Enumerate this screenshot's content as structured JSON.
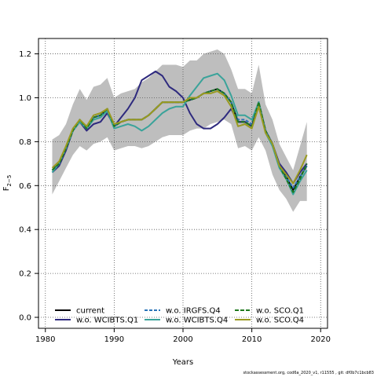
{
  "chart_data": {
    "type": "line",
    "title": "",
    "xlabel": "Years",
    "ylabel": "F",
    "ylabel_subscript": "2−5",
    "xlim": [
      1979,
      2021
    ],
    "ylim": [
      -0.05,
      1.27
    ],
    "xticks": [
      1980,
      1990,
      2000,
      2010,
      2020
    ],
    "yticks": [
      0.0,
      0.2,
      0.4,
      0.6,
      0.8,
      1.0,
      1.2
    ],
    "grid": true,
    "legend_position": "bottom-left",
    "x": [
      1981,
      1982,
      1983,
      1984,
      1985,
      1986,
      1987,
      1988,
      1989,
      1990,
      1991,
      1992,
      1993,
      1994,
      1995,
      1996,
      1997,
      1998,
      1999,
      2000,
      2001,
      2002,
      2003,
      2004,
      2005,
      2006,
      2007,
      2008,
      2009,
      2010,
      2011,
      2012,
      2013,
      2014,
      2015,
      2016,
      2017,
      2018
    ],
    "band": {
      "color": "#bebebe",
      "lower": [
        0.56,
        0.62,
        0.68,
        0.74,
        0.78,
        0.76,
        0.79,
        0.8,
        0.82,
        0.76,
        0.77,
        0.78,
        0.78,
        0.77,
        0.78,
        0.8,
        0.82,
        0.83,
        0.83,
        0.83,
        0.85,
        0.86,
        0.86,
        0.88,
        0.89,
        0.9,
        0.88,
        0.77,
        0.78,
        0.76,
        0.82,
        0.76,
        0.65,
        0.58,
        0.54,
        0.48,
        0.53,
        0.53
      ],
      "upper": [
        0.81,
        0.83,
        0.88,
        0.97,
        1.04,
        0.99,
        1.05,
        1.06,
        1.09,
        1.0,
        1.02,
        1.03,
        1.04,
        1.07,
        1.09,
        1.12,
        1.15,
        1.15,
        1.15,
        1.14,
        1.17,
        1.17,
        1.2,
        1.21,
        1.22,
        1.2,
        1.13,
        1.04,
        1.04,
        1.02,
        1.15,
        0.97,
        0.9,
        0.79,
        0.73,
        0.67,
        0.78,
        0.89
      ]
    },
    "series": [
      {
        "name": "current",
        "color": "#000000",
        "dash": "",
        "values": [
          0.67,
          0.7,
          0.77,
          0.85,
          0.9,
          0.86,
          0.91,
          0.92,
          0.95,
          0.87,
          0.89,
          0.9,
          0.9,
          0.9,
          0.92,
          0.95,
          0.98,
          0.98,
          0.98,
          0.98,
          0.99,
          1.0,
          1.02,
          1.03,
          1.04,
          1.02,
          0.98,
          0.89,
          0.89,
          0.87,
          0.98,
          0.85,
          0.79,
          0.69,
          0.64,
          0.58,
          0.64,
          0.69
        ]
      },
      {
        "name": "w.o. WCIBTS.Q1",
        "color": "#2e2a7e",
        "dash": "",
        "values": [
          0.66,
          0.69,
          0.76,
          0.85,
          0.89,
          0.85,
          0.88,
          0.89,
          0.93,
          0.87,
          0.91,
          0.95,
          1.0,
          1.08,
          1.1,
          1.12,
          1.1,
          1.05,
          1.03,
          1.0,
          0.93,
          0.88,
          0.86,
          0.86,
          0.88,
          0.91,
          0.95,
          0.89,
          0.89,
          0.87,
          0.97,
          0.85,
          0.79,
          0.7,
          0.66,
          0.61,
          0.66,
          0.7
        ]
      },
      {
        "name": "w.o. IRGFS.Q4",
        "color": "#2a73b8",
        "dash": "4,2",
        "values": [
          0.67,
          0.7,
          0.77,
          0.85,
          0.9,
          0.86,
          0.91,
          0.92,
          0.95,
          0.87,
          0.89,
          0.9,
          0.9,
          0.9,
          0.92,
          0.95,
          0.98,
          0.98,
          0.98,
          0.98,
          0.99,
          1.0,
          1.02,
          1.03,
          1.04,
          1.02,
          0.98,
          0.9,
          0.9,
          0.88,
          0.98,
          0.85,
          0.79,
          0.69,
          0.64,
          0.59,
          0.64,
          0.69
        ]
      },
      {
        "name": "w.o. WCIBTS.Q4",
        "color": "#3aa39a",
        "dash": "",
        "values": [
          0.66,
          0.7,
          0.77,
          0.85,
          0.89,
          0.86,
          0.9,
          0.91,
          0.94,
          0.86,
          0.87,
          0.88,
          0.87,
          0.85,
          0.87,
          0.9,
          0.93,
          0.95,
          0.96,
          0.96,
          1.01,
          1.05,
          1.09,
          1.1,
          1.11,
          1.08,
          1.01,
          0.92,
          0.92,
          0.9,
          0.98,
          0.84,
          0.78,
          0.68,
          0.63,
          0.56,
          0.62,
          0.67
        ]
      },
      {
        "name": "w.o. SCO.Q1",
        "color": "#1f7a1f",
        "dash": "5,2",
        "values": [
          0.67,
          0.7,
          0.77,
          0.85,
          0.9,
          0.86,
          0.91,
          0.92,
          0.95,
          0.87,
          0.89,
          0.9,
          0.9,
          0.9,
          0.92,
          0.95,
          0.98,
          0.98,
          0.98,
          0.98,
          0.99,
          1.0,
          1.02,
          1.03,
          1.04,
          1.02,
          0.98,
          0.89,
          0.89,
          0.87,
          0.98,
          0.85,
          0.79,
          0.69,
          0.63,
          0.57,
          0.63,
          0.7
        ]
      },
      {
        "name": "w.o. SCO.Q4",
        "color": "#9a9a20",
        "dash": "",
        "values": [
          0.68,
          0.71,
          0.78,
          0.86,
          0.9,
          0.87,
          0.92,
          0.93,
          0.95,
          0.88,
          0.89,
          0.9,
          0.9,
          0.9,
          0.92,
          0.95,
          0.98,
          0.98,
          0.98,
          0.98,
          1.0,
          1.0,
          1.02,
          1.02,
          1.03,
          1.01,
          0.96,
          0.87,
          0.88,
          0.86,
          0.96,
          0.84,
          0.79,
          0.69,
          0.65,
          0.61,
          0.67,
          0.74
        ]
      }
    ]
  },
  "footer_text": "stockassessment.org, cod6a_2020_v1, r11555 , git: df0b7c1bcb83"
}
